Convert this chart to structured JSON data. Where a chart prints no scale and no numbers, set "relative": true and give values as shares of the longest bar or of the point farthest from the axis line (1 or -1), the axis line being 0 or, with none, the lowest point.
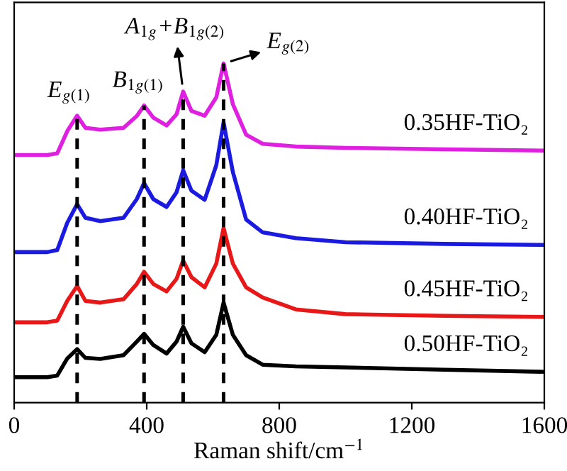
{
  "chart_data": {
    "type": "line",
    "relative": true,
    "xlabel": "Raman shift/cm$^{−1}$",
    "xlim": [
      0,
      1600
    ],
    "xticks": [
      0,
      400,
      800,
      1200,
      1600
    ],
    "tick_labels": "x",
    "grid": false,
    "legend": false,
    "marker": "none",
    "line_style": "solid",
    "series": [
      {
        "name": "0.35HF-TiO₂",
        "color": "#e020e0",
        "x": [
          0,
          100,
          130,
          160,
          190,
          215,
          260,
          330,
          370,
          392,
          420,
          460,
          490,
          510,
          535,
          575,
          610,
          632,
          660,
          700,
          750,
          850,
          1000,
          1300,
          1600
        ],
        "values": [
          0.73,
          0.73,
          0.735,
          0.8,
          0.846,
          0.81,
          0.805,
          0.81,
          0.845,
          0.876,
          0.84,
          0.817,
          0.85,
          0.917,
          0.86,
          0.846,
          0.9,
          1.0,
          0.88,
          0.79,
          0.763,
          0.755,
          0.751,
          0.747,
          0.743
        ]
      },
      {
        "name": "0.40HF-TiO₂",
        "color": "#1a1ae0",
        "x": [
          0,
          100,
          130,
          160,
          190,
          215,
          260,
          330,
          370,
          392,
          420,
          460,
          490,
          510,
          535,
          575,
          610,
          632,
          660,
          700,
          750,
          850,
          1000,
          1300,
          1600
        ],
        "values": [
          0.444,
          0.444,
          0.45,
          0.53,
          0.585,
          0.545,
          0.535,
          0.545,
          0.6,
          0.647,
          0.6,
          0.577,
          0.62,
          0.685,
          0.625,
          0.598,
          0.7,
          0.826,
          0.68,
          0.54,
          0.502,
          0.485,
          0.473,
          0.468,
          0.465
        ]
      },
      {
        "name": "0.45HF-TiO₂",
        "color": "#e81818",
        "x": [
          0,
          100,
          130,
          160,
          190,
          215,
          260,
          330,
          370,
          392,
          420,
          460,
          490,
          510,
          535,
          575,
          610,
          632,
          660,
          700,
          750,
          850,
          1000,
          1300,
          1600
        ],
        "values": [
          0.237,
          0.237,
          0.242,
          0.3,
          0.344,
          0.3,
          0.295,
          0.305,
          0.35,
          0.386,
          0.35,
          0.328,
          0.365,
          0.419,
          0.37,
          0.34,
          0.41,
          0.515,
          0.41,
          0.34,
          0.31,
          0.275,
          0.261,
          0.256,
          0.253
        ]
      },
      {
        "name": "0.50HF-TiO₂",
        "color": "#000000",
        "x": [
          0,
          100,
          130,
          160,
          190,
          215,
          260,
          330,
          370,
          392,
          420,
          460,
          490,
          510,
          535,
          575,
          610,
          632,
          660,
          700,
          750,
          850,
          1000,
          1300,
          1600
        ],
        "values": [
          0.075,
          0.075,
          0.08,
          0.13,
          0.158,
          0.132,
          0.129,
          0.14,
          0.18,
          0.203,
          0.17,
          0.145,
          0.18,
          0.224,
          0.175,
          0.149,
          0.2,
          0.295,
          0.2,
          0.14,
          0.112,
          0.107,
          0.104,
          0.097,
          0.091
        ]
      }
    ],
    "ref_lines": [
      {
        "axis": "x",
        "value": 190,
        "color": "#000000",
        "line_style": "dashed"
      },
      {
        "axis": "x",
        "value": 392,
        "color": "#000000",
        "line_style": "dashed"
      },
      {
        "axis": "x",
        "value": 510,
        "color": "#000000",
        "line_style": "dashed"
      },
      {
        "axis": "x",
        "value": 632,
        "color": "#000000",
        "line_style": "dashed"
      }
    ],
    "annotations": [
      {
        "text": "E$_{g(1)}$",
        "x": 190,
        "y": 0.846
      },
      {
        "text": "B$_{1g(1)}$",
        "x": 392,
        "y": 0.876
      },
      {
        "text": "A$_{1g}$+B$_{1g(2)}$",
        "x": 510,
        "y": 0.917
      },
      {
        "text": "E$_{g(2)}$",
        "x": 632,
        "y": 1.0
      }
    ]
  }
}
